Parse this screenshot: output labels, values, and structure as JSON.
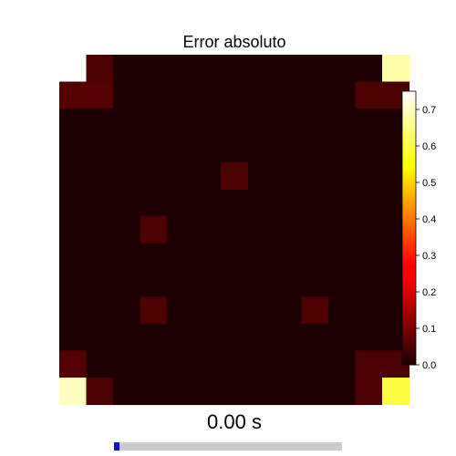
{
  "chart_data": {
    "type": "heatmap",
    "title": "Error absoluto",
    "rows": 14,
    "cols": 13,
    "values": [
      [
        null,
        0.05,
        0.0,
        0.0,
        0.0,
        0.0,
        0.0,
        0.0,
        0.0,
        0.0,
        0.0,
        0.0,
        0.68
      ],
      [
        0.06,
        0.06,
        0.0,
        0.0,
        0.0,
        0.0,
        0.0,
        0.0,
        0.0,
        0.0,
        0.0,
        0.05,
        0.05
      ],
      [
        0.0,
        0.0,
        0.0,
        0.0,
        0.0,
        0.0,
        0.0,
        0.0,
        0.0,
        0.0,
        0.0,
        0.0,
        0.0
      ],
      [
        0.0,
        0.0,
        0.0,
        0.0,
        0.0,
        0.0,
        0.0,
        0.0,
        0.0,
        0.0,
        0.0,
        0.0,
        0.0
      ],
      [
        0.0,
        0.0,
        0.0,
        0.0,
        0.0,
        0.0,
        0.0,
        0.0,
        0.0,
        0.0,
        0.0,
        0.0,
        0.0
      ],
      [
        0.0,
        0.0,
        0.0,
        0.0,
        0.0,
        0.0,
        0.0,
        0.0,
        0.0,
        0.0,
        0.0,
        0.0,
        0.0
      ],
      [
        0.0,
        0.0,
        0.0,
        0.05,
        0.0,
        0.0,
        0.0,
        0.0,
        0.0,
        0.0,
        0.0,
        0.0,
        0.0
      ],
      [
        0.0,
        0.0,
        0.0,
        0.0,
        0.0,
        0.0,
        0.0,
        0.0,
        0.0,
        0.0,
        0.0,
        0.0,
        0.0
      ],
      [
        0.0,
        0.0,
        0.0,
        0.0,
        0.0,
        0.0,
        0.0,
        0.0,
        0.0,
        0.0,
        0.0,
        0.0,
        0.0
      ],
      [
        0.0,
        0.0,
        0.0,
        0.05,
        0.0,
        0.0,
        0.0,
        0.0,
        0.0,
        0.05,
        0.0,
        0.0,
        0.0
      ],
      [
        0.0,
        0.0,
        0.0,
        0.0,
        0.0,
        0.0,
        0.0,
        0.0,
        0.0,
        0.0,
        0.0,
        0.0,
        0.0
      ],
      [
        0.06,
        0.0,
        0.0,
        0.0,
        0.0,
        0.0,
        0.0,
        0.0,
        0.0,
        0.0,
        0.0,
        0.05,
        0.05
      ],
      [
        0.7,
        0.05,
        0.0,
        0.0,
        0.0,
        0.0,
        0.0,
        0.0,
        0.0,
        0.0,
        0.0,
        0.05,
        0.6
      ],
      [
        null,
        null,
        null,
        null,
        null,
        null,
        null,
        null,
        null,
        null,
        null,
        null,
        null
      ]
    ],
    "extra_cells": [
      {
        "row": 4,
        "col": 6,
        "value": 0.05
      }
    ],
    "colorbar": {
      "colormap": "hot",
      "range": [
        0.0,
        0.75
      ],
      "ticks": [
        "0.0",
        "0.1",
        "0.2",
        "0.3",
        "0.4",
        "0.5",
        "0.6",
        "0.7"
      ]
    }
  },
  "player": {
    "time_label": "0.00 s",
    "progress": 0.0
  }
}
